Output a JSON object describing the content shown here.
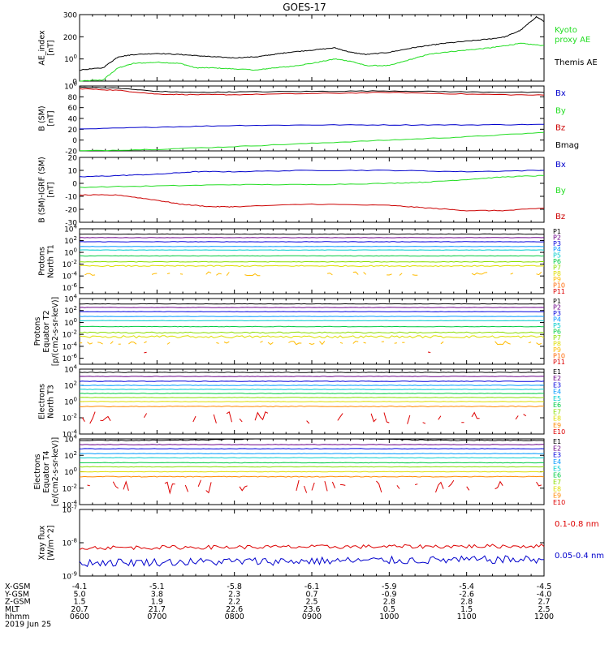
{
  "title": "GOES-17",
  "chart_data": [
    {
      "type": "line",
      "ylabel": [
        "AE_index",
        "[nT]"
      ],
      "ylim": [
        0,
        300
      ],
      "yticks": [
        {
          "v": 0,
          "t": "0"
        },
        {
          "v": 100,
          "t": "100"
        },
        {
          "v": 200,
          "t": "200"
        },
        {
          "v": 300,
          "t": "300"
        }
      ],
      "series": [
        {
          "name": "Kyoto proxy AE",
          "label_lines": [
            "Kyoto",
            "proxy AE"
          ],
          "color": "#22dd22",
          "x": [
            6.0,
            6.3,
            6.5,
            6.7,
            7.0,
            7.3,
            7.5,
            7.7,
            8.0,
            8.3,
            8.5,
            8.7,
            9.0,
            9.3,
            9.5,
            9.7,
            10.0,
            10.3,
            10.5,
            10.7,
            11.0,
            11.3,
            11.5,
            11.7,
            12.0
          ],
          "y": [
            0,
            5,
            60,
            80,
            85,
            80,
            60,
            60,
            55,
            50,
            60,
            65,
            80,
            100,
            90,
            70,
            70,
            100,
            120,
            130,
            140,
            150,
            160,
            170,
            160
          ]
        },
        {
          "name": "Themis AE",
          "label_lines": [
            "Themis AE"
          ],
          "color": "#000000",
          "x": [
            6.0,
            6.3,
            6.5,
            6.7,
            7.0,
            7.3,
            7.5,
            7.7,
            8.0,
            8.3,
            8.5,
            8.7,
            9.0,
            9.3,
            9.5,
            9.7,
            10.0,
            10.3,
            10.5,
            10.7,
            11.0,
            11.3,
            11.5,
            11.7,
            11.9,
            12.0
          ],
          "y": [
            50,
            60,
            110,
            120,
            125,
            120,
            115,
            110,
            105,
            110,
            120,
            130,
            140,
            150,
            130,
            120,
            130,
            150,
            160,
            170,
            180,
            190,
            200,
            230,
            290,
            270
          ]
        }
      ]
    },
    {
      "type": "line",
      "ylabel": [
        "B (SM)",
        "[nT]"
      ],
      "ylim": [
        -20,
        100
      ],
      "yticks": [
        {
          "v": -20,
          "t": "-20"
        },
        {
          "v": 0,
          "t": "0"
        },
        {
          "v": 20,
          "t": "20"
        },
        {
          "v": 40,
          "t": "40"
        },
        {
          "v": 60,
          "t": "60"
        },
        {
          "v": 80,
          "t": "80"
        },
        {
          "v": 100,
          "t": "100"
        }
      ],
      "series": [
        {
          "name": "Bx",
          "color": "#0000cc",
          "x": [
            6.0,
            7.0,
            8.0,
            9.0,
            10.0,
            11.0,
            12.0
          ],
          "y": [
            20,
            24,
            27,
            28,
            28,
            28,
            29
          ]
        },
        {
          "name": "By",
          "color": "#22dd22",
          "x": [
            6.0,
            7.0,
            8.0,
            9.0,
            10.0,
            11.0,
            12.0
          ],
          "y": [
            -20,
            -17,
            -12,
            -6,
            0,
            6,
            14
          ]
        },
        {
          "name": "Bz",
          "color": "#cc0000",
          "x": [
            6.0,
            6.5,
            7.0,
            7.5,
            8.0,
            9.0,
            10.0,
            11.0,
            12.0
          ],
          "y": [
            95,
            92,
            85,
            84,
            84,
            86,
            88,
            85,
            83
          ]
        },
        {
          "name": "Bmag",
          "color": "#000000",
          "x": [
            6.0,
            6.5,
            7.0,
            7.5,
            8.0,
            9.0,
            10.0,
            11.0,
            12.0
          ],
          "y": [
            98,
            96,
            90,
            88,
            89,
            90,
            91,
            89,
            88
          ]
        }
      ]
    },
    {
      "type": "line",
      "ylabel": [
        "B (SM)-IGRF (SM)",
        "[nT]"
      ],
      "ylim": [
        -30,
        20
      ],
      "yticks": [
        {
          "v": -30,
          "t": "-30"
        },
        {
          "v": -20,
          "t": "-20"
        },
        {
          "v": -10,
          "t": "-10"
        },
        {
          "v": 0,
          "t": "0"
        },
        {
          "v": 10,
          "t": "10"
        },
        {
          "v": 20,
          "t": "20"
        }
      ],
      "series": [
        {
          "name": "Bx",
          "color": "#0000cc",
          "x": [
            6.0,
            6.5,
            7.0,
            7.5,
            8.0,
            9.0,
            10.0,
            11.0,
            12.0
          ],
          "y": [
            5,
            6,
            7,
            9,
            9,
            10,
            10,
            9,
            10
          ]
        },
        {
          "name": "By",
          "color": "#22dd22",
          "x": [
            6.0,
            7.0,
            8.0,
            9.0,
            10.0,
            10.5,
            11.0,
            11.5,
            12.0
          ],
          "y": [
            -3,
            -2,
            -1,
            -1,
            0,
            1,
            3,
            5,
            6
          ]
        },
        {
          "name": "Bz",
          "color": "#cc0000",
          "x": [
            6.0,
            6.5,
            7.0,
            7.3,
            7.7,
            8.0,
            9.0,
            10.0,
            10.5,
            11.0,
            11.5,
            12.0
          ],
          "y": [
            -9,
            -9,
            -13,
            -16,
            -18,
            -18,
            -16,
            -17,
            -19,
            -21,
            -21,
            -19
          ]
        }
      ]
    },
    {
      "type": "line",
      "log": true,
      "ylabel": [
        "Protons",
        "North T1"
      ],
      "ylim": [
        -7,
        4
      ],
      "yticks": [
        {
          "v": -6,
          "t": "10-6"
        },
        {
          "v": -4,
          "t": "10-4"
        },
        {
          "v": -2,
          "t": "10-2"
        },
        {
          "v": 0,
          "t": "100"
        },
        {
          "v": 2,
          "t": "102"
        },
        {
          "v": 4,
          "t": "104"
        }
      ],
      "series": [
        {
          "name": "P1",
          "color": "#000000",
          "level": 3.1,
          "noise": 0.03
        },
        {
          "name": "P2",
          "color": "#6a0088",
          "level": 2.5,
          "noise": 0.03
        },
        {
          "name": "P3",
          "color": "#0000dd",
          "level": 1.8,
          "noise": 0.03
        },
        {
          "name": "P4",
          "color": "#0099ff",
          "level": 1.0,
          "noise": 0.03
        },
        {
          "name": "P5",
          "color": "#00cccc",
          "level": 0.4,
          "noise": 0.03
        },
        {
          "name": "P6",
          "color": "#00cc44",
          "level": -0.6,
          "noise": 0.04
        },
        {
          "name": "P7",
          "color": "#88dd00",
          "level": -1.6,
          "noise": 0.05
        },
        {
          "name": "P8",
          "color": "#dddd00",
          "level": -2.3,
          "noise": 0.1
        },
        {
          "name": "P9",
          "color": "#ffbb00",
          "level": -3.6,
          "noise": 0.35,
          "broken": true
        },
        {
          "name": "P10",
          "color": "#ff6600",
          "level": -9,
          "noise": 0
        },
        {
          "name": "P11",
          "color": "#dd0000",
          "level": -9,
          "noise": 0
        }
      ]
    },
    {
      "type": "line",
      "log": true,
      "ylabel": [
        "Protons",
        "Equator T2",
        "[p/(cm2-s-sr-keV)]"
      ],
      "ylim": [
        -7,
        4
      ],
      "yticks": [
        {
          "v": -6,
          "t": "10-6"
        },
        {
          "v": -4,
          "t": "10-4"
        },
        {
          "v": -2,
          "t": "10-2"
        },
        {
          "v": 0,
          "t": "100"
        },
        {
          "v": 2,
          "t": "102"
        },
        {
          "v": 4,
          "t": "104"
        }
      ],
      "series": [
        {
          "name": "P1",
          "color": "#000000",
          "level": 3.1,
          "noise": 0.03
        },
        {
          "name": "P2",
          "color": "#6a0088",
          "level": 2.5,
          "noise": 0.03
        },
        {
          "name": "P3",
          "color": "#0000dd",
          "level": 1.8,
          "noise": 0.03
        },
        {
          "name": "P4",
          "color": "#0099ff",
          "level": 1.0,
          "noise": 0.03
        },
        {
          "name": "P5",
          "color": "#00cccc",
          "level": 0.3,
          "noise": 0.03
        },
        {
          "name": "P6",
          "color": "#00cc44",
          "level": -0.7,
          "noise": 0.04
        },
        {
          "name": "P7",
          "color": "#88dd00",
          "level": -1.7,
          "noise": 0.1
        },
        {
          "name": "P8",
          "color": "#dddd00",
          "level": -2.4,
          "noise": 0.2
        },
        {
          "name": "P9",
          "color": "#ffbb00",
          "level": -3.4,
          "noise": 0.3,
          "broken": true
        },
        {
          "name": "P10",
          "color": "#ff6600",
          "level": -9,
          "noise": 0
        },
        {
          "name": "P11",
          "color": "#dd0000",
          "level": -5.0,
          "noise": 0.1,
          "broken": true,
          "sparse": true
        }
      ]
    },
    {
      "type": "line",
      "log": true,
      "ylabel": [
        "Electrons",
        "North T3"
      ],
      "ylim": [
        -4,
        4
      ],
      "yticks": [
        {
          "v": -4,
          "t": "10-4"
        },
        {
          "v": -2,
          "t": "10-2"
        },
        {
          "v": 0,
          "t": "100"
        },
        {
          "v": 2,
          "t": "102"
        },
        {
          "v": 4,
          "t": "104"
        }
      ],
      "series": [
        {
          "name": "E1",
          "color": "#000000",
          "level": 3.6,
          "noise": 0.03
        },
        {
          "name": "E2",
          "color": "#6a0088",
          "level": 3.1,
          "noise": 0.03
        },
        {
          "name": "E3",
          "color": "#0000dd",
          "level": 2.5,
          "noise": 0.03
        },
        {
          "name": "E4",
          "color": "#0099ff",
          "level": 2.0,
          "noise": 0.03
        },
        {
          "name": "E5",
          "color": "#00cccc",
          "level": 1.5,
          "noise": 0.03
        },
        {
          "name": "E6",
          "color": "#00cc44",
          "level": 1.0,
          "noise": 0.03
        },
        {
          "name": "E7",
          "color": "#88dd00",
          "level": 0.5,
          "noise": 0.03
        },
        {
          "name": "E8",
          "color": "#dddd00",
          "level": 0.0,
          "noise": 0.03
        },
        {
          "name": "E9",
          "color": "#ff8800",
          "level": -0.6,
          "noise": 0.05
        },
        {
          "name": "E10",
          "color": "#dd0000",
          "level": -2.0,
          "noise": 0.8,
          "broken": true
        }
      ]
    },
    {
      "type": "line",
      "log": true,
      "ylabel": [
        "Electrons",
        "Equator T4",
        "[e/(cm2-s-sr-keV)]"
      ],
      "ylim": [
        -4,
        4
      ],
      "yticks": [
        {
          "v": -4,
          "t": "10-4"
        },
        {
          "v": -2,
          "t": "10-2"
        },
        {
          "v": 0,
          "t": "100"
        },
        {
          "v": 2,
          "t": "102"
        },
        {
          "v": 4,
          "t": "104"
        }
      ],
      "series": [
        {
          "name": "E1",
          "color": "#000000",
          "level": 3.8,
          "noise": 0.05,
          "bump": 0.3
        },
        {
          "name": "E2",
          "color": "#6a0088",
          "level": 3.3,
          "noise": 0.03
        },
        {
          "name": "E3",
          "color": "#0000dd",
          "level": 2.8,
          "noise": 0.03
        },
        {
          "name": "E4",
          "color": "#0099ff",
          "level": 2.2,
          "noise": 0.03
        },
        {
          "name": "E5",
          "color": "#00cccc",
          "level": 1.7,
          "noise": 0.03
        },
        {
          "name": "E6",
          "color": "#00cc44",
          "level": 1.1,
          "noise": 0.03
        },
        {
          "name": "E7",
          "color": "#88dd00",
          "level": 0.6,
          "noise": 0.03
        },
        {
          "name": "E8",
          "color": "#dddd00",
          "level": 0.0,
          "noise": 0.03
        },
        {
          "name": "E9",
          "color": "#ff8800",
          "level": -0.6,
          "noise": 0.05
        },
        {
          "name": "E10",
          "color": "#dd0000",
          "level": -1.8,
          "noise": 0.8,
          "broken": true
        }
      ]
    },
    {
      "type": "line",
      "log": true,
      "ylabel": [
        "Xray flux",
        "[W/m^2]"
      ],
      "ylim": [
        -9,
        -7
      ],
      "yticks": [
        {
          "v": -9,
          "t": "10-9"
        },
        {
          "v": -8,
          "t": "10-8"
        },
        {
          "v": -7,
          "t": "10-7"
        }
      ],
      "series": [
        {
          "name": "0.1-0.8 nm",
          "color": "#dd0000",
          "level": -8.15,
          "trend": 0.05,
          "noise": 0.06
        },
        {
          "name": "0.05-0.4 nm",
          "color": "#0000cc",
          "level": -8.6,
          "trend": 0.1,
          "noise": 0.12
        }
      ]
    }
  ],
  "orbit_table": {
    "rows": [
      {
        "label": "X-GSM",
        "values": [
          "-4.1",
          "-5.1",
          "-5.8",
          "-6.1",
          "-5.9",
          "-5.4",
          "-4.5"
        ]
      },
      {
        "label": "Y-GSM",
        "values": [
          "5.0",
          "3.8",
          "2.3",
          "0.7",
          "-0.9",
          "-2.6",
          "-4.0"
        ]
      },
      {
        "label": "Z-GSM",
        "values": [
          "1.5",
          "1.9",
          "2.2",
          "2.5",
          "2.8",
          "2.8",
          "2.7"
        ]
      },
      {
        "label": "MLT",
        "values": [
          "20.7",
          "21.7",
          "22.6",
          "23.6",
          "0.5",
          "1.5",
          "2.5"
        ]
      },
      {
        "label": "hhmm",
        "values": [
          "0600",
          "0700",
          "0800",
          "0900",
          "1000",
          "1100",
          "1200"
        ]
      }
    ],
    "date": "2019 Jun 25"
  }
}
